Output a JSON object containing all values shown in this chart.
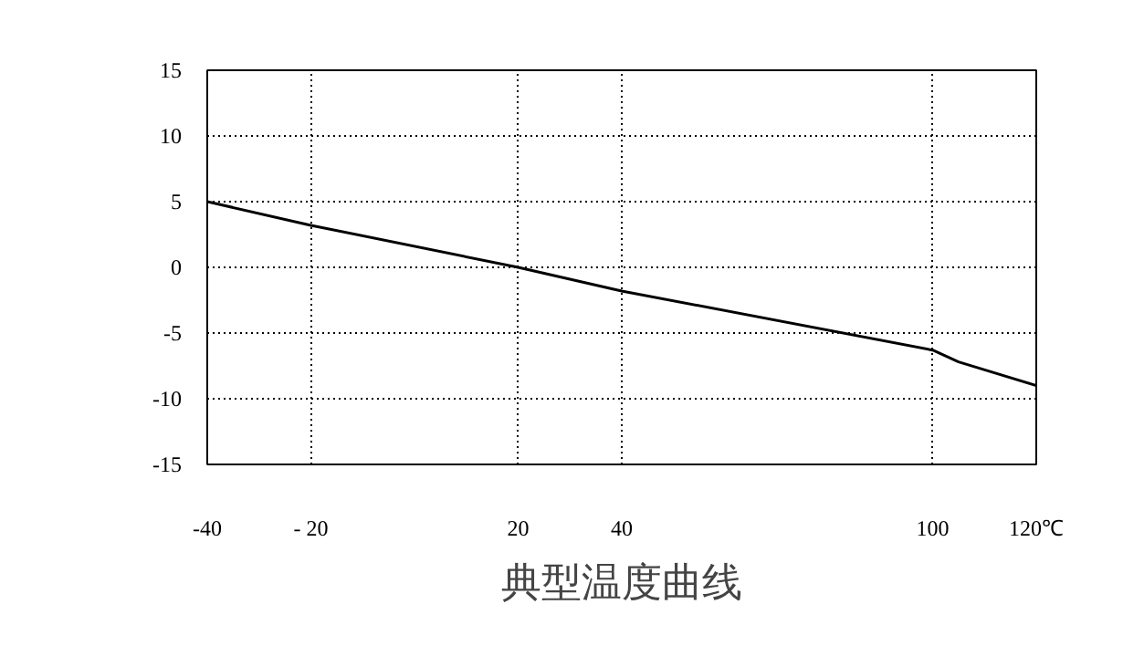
{
  "chart_data": {
    "type": "line",
    "title": "典型温度曲线",
    "x": [
      -40,
      -20,
      20,
      40,
      100,
      105,
      120
    ],
    "series": [
      {
        "color": "#000000",
        "values": [
          5,
          3.2,
          0,
          -1.8,
          -6.3,
          -7.2,
          -9
        ]
      }
    ],
    "xlim": [
      -40,
      120
    ],
    "xticks": [
      -40,
      {
        "value": -20,
        "label": "- 20"
      },
      20,
      40,
      100,
      {
        "value": 120,
        "label": "120℃"
      }
    ],
    "ylim": [
      -15,
      15
    ],
    "yticks": [
      15,
      10,
      5,
      0,
      -5,
      -10,
      -15
    ],
    "grid": true,
    "line_style": "solid",
    "marker": "none"
  }
}
